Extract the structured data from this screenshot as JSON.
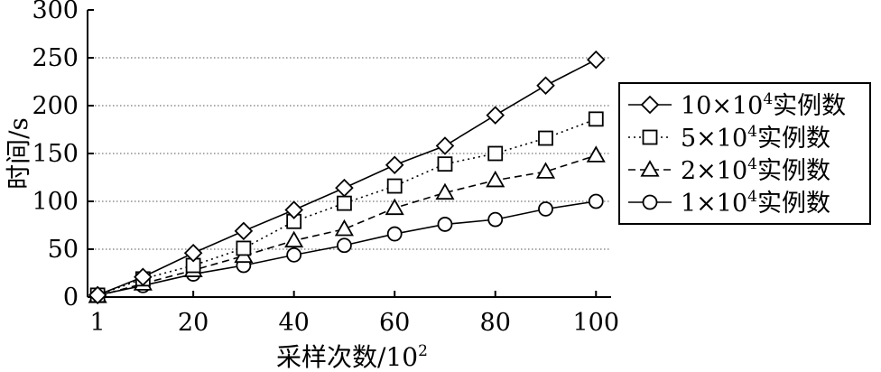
{
  "chart_data": {
    "type": "line",
    "xlabel": "采样次数/10",
    "xlabel_sup": "2",
    "ylabel": "时间/s",
    "xlim": [
      -1,
      103
    ],
    "ylim": [
      0,
      300
    ],
    "x_ticks": [
      {
        "value": 1,
        "label": "1"
      },
      {
        "value": 20,
        "label": "20"
      },
      {
        "value": 40,
        "label": "40"
      },
      {
        "value": 60,
        "label": "60"
      },
      {
        "value": 80,
        "label": "80"
      },
      {
        "value": 100,
        "label": "100"
      }
    ],
    "y_ticks": [
      {
        "value": 0,
        "label": "0"
      },
      {
        "value": 50,
        "label": "50"
      },
      {
        "value": 100,
        "label": "100"
      },
      {
        "value": 150,
        "label": "150"
      },
      {
        "value": 200,
        "label": "200"
      },
      {
        "value": 250,
        "label": "250"
      },
      {
        "value": 300,
        "label": "300"
      }
    ],
    "grid": "horizontal dotted",
    "legend_position": "right",
    "x": [
      1,
      10,
      20,
      30,
      40,
      50,
      60,
      70,
      80,
      90,
      100
    ],
    "series": [
      {
        "name": "10×10⁴实例数",
        "legend_prefix": "10×10",
        "legend_sup": "4",
        "legend_suffix": "实例数",
        "marker": "diamond",
        "line": "solid",
        "values": [
          2,
          21,
          46,
          69,
          91,
          114,
          138,
          158,
          190,
          221,
          248
        ]
      },
      {
        "name": "5×10⁴实例数",
        "legend_prefix": "5×10",
        "legend_sup": "4",
        "legend_suffix": "实例数",
        "marker": "square",
        "line": "dotted",
        "values": [
          2,
          19,
          33,
          51,
          79,
          98,
          116,
          139,
          150,
          166,
          186
        ]
      },
      {
        "name": "2×10⁴实例数",
        "legend_prefix": "2×10",
        "legend_sup": "4",
        "legend_suffix": "实例数",
        "marker": "triangle",
        "line": "dashed",
        "values": [
          1,
          14,
          28,
          43,
          59,
          71,
          93,
          109,
          122,
          131,
          148
        ]
      },
      {
        "name": "1×10⁴实例数",
        "legend_prefix": "1×10",
        "legend_sup": "4",
        "legend_suffix": "实例数",
        "marker": "circle",
        "line": "solid",
        "values": [
          2,
          12,
          24,
          33,
          44,
          54,
          66,
          76,
          81,
          92,
          100
        ]
      }
    ]
  }
}
